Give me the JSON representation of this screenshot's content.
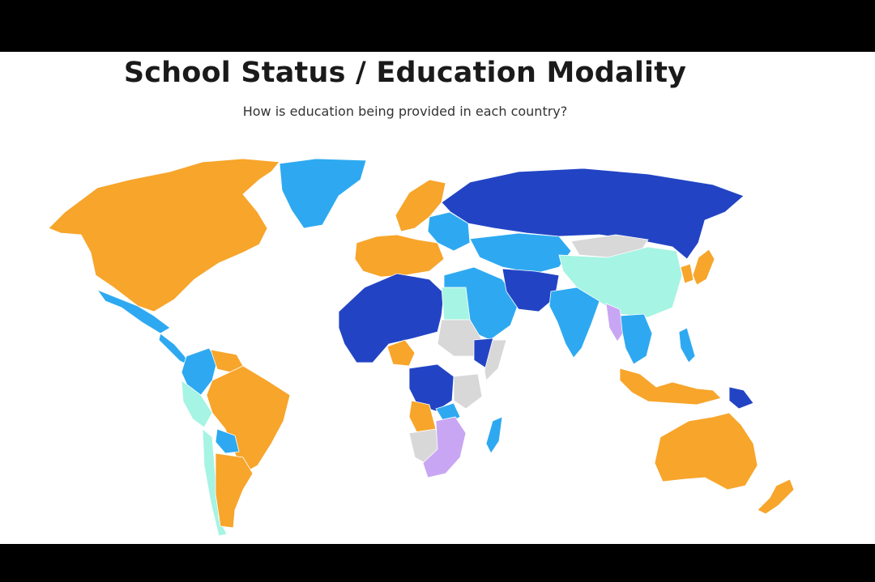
{
  "title": "School Status / Education Modality",
  "subtitle": "How is education being provided in each country?",
  "colors": {
    "orange": "#F7A52B",
    "dark_blue": "#2244C4",
    "light_blue": "#2EA9F1",
    "mint": "#A6F4E3",
    "lavender": "#C8A6F4",
    "gray": "#D8D8D8",
    "background": "#FFFFFF",
    "letterbox": "#000000"
  },
  "regions": [
    {
      "name": "north-america",
      "category": "orange"
    },
    {
      "name": "greenland",
      "category": "light_blue"
    },
    {
      "name": "mexico",
      "category": "light_blue"
    },
    {
      "name": "central-america",
      "category": "light_blue"
    },
    {
      "name": "brazil",
      "category": "orange"
    },
    {
      "name": "colombia",
      "category": "light_blue"
    },
    {
      "name": "venezuela",
      "category": "orange"
    },
    {
      "name": "peru",
      "category": "mint"
    },
    {
      "name": "bolivia",
      "category": "light_blue"
    },
    {
      "name": "argentina",
      "category": "orange"
    },
    {
      "name": "chile",
      "category": "mint"
    },
    {
      "name": "europe-north",
      "category": "orange"
    },
    {
      "name": "europe-west",
      "category": "orange"
    },
    {
      "name": "europe-east",
      "category": "light_blue"
    },
    {
      "name": "russia",
      "category": "dark_blue"
    },
    {
      "name": "kazakhstan",
      "category": "light_blue"
    },
    {
      "name": "mongolia",
      "category": "gray"
    },
    {
      "name": "china",
      "category": "mint"
    },
    {
      "name": "japan",
      "category": "orange"
    },
    {
      "name": "korea",
      "category": "orange"
    },
    {
      "name": "middle-east",
      "category": "light_blue"
    },
    {
      "name": "iran-afghanistan",
      "category": "dark_blue"
    },
    {
      "name": "india",
      "category": "light_blue"
    },
    {
      "name": "myanmar",
      "category": "lavender"
    },
    {
      "name": "southeast-asia",
      "category": "light_blue"
    },
    {
      "name": "indonesia",
      "category": "orange"
    },
    {
      "name": "papua-new-guinea",
      "category": "dark_blue"
    },
    {
      "name": "philippines",
      "category": "light_blue"
    },
    {
      "name": "australia",
      "category": "orange"
    },
    {
      "name": "new-zealand",
      "category": "orange"
    },
    {
      "name": "west-africa",
      "category": "dark_blue"
    },
    {
      "name": "nigeria",
      "category": "orange"
    },
    {
      "name": "egypt",
      "category": "mint"
    },
    {
      "name": "sudan",
      "category": "gray"
    },
    {
      "name": "ethiopia",
      "category": "dark_blue"
    },
    {
      "name": "somalia",
      "category": "gray"
    },
    {
      "name": "central-africa",
      "category": "dark_blue"
    },
    {
      "name": "angola",
      "category": "orange"
    },
    {
      "name": "zambia",
      "category": "light_blue"
    },
    {
      "name": "tanzania",
      "category": "gray"
    },
    {
      "name": "southern-africa",
      "category": "lavender"
    },
    {
      "name": "namibia-botswana",
      "category": "gray"
    },
    {
      "name": "madagascar",
      "category": "light_blue"
    }
  ]
}
